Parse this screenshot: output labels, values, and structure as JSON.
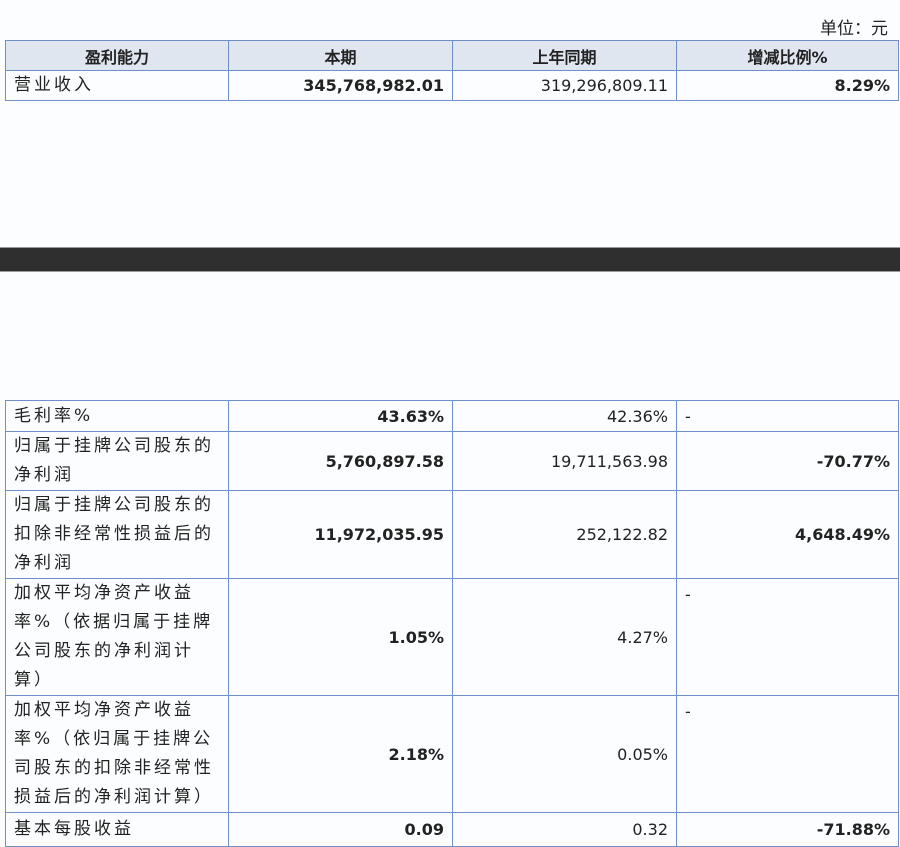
{
  "unit_label": "单位：元",
  "table1": {
    "headers": [
      "盈利能力",
      "本期",
      "上年同期",
      "增减比例%"
    ],
    "rows": [
      {
        "label": "营业收入",
        "current": "345,768,982.01",
        "previous": "319,296,809.11",
        "change": "8.29%"
      }
    ]
  },
  "table2": {
    "rows": [
      {
        "label": "毛利率%",
        "current": "43.63%",
        "previous": "42.36%",
        "change": "-"
      },
      {
        "label": "归属于挂牌公司股东的净利润",
        "current": "5,760,897.58",
        "previous": "19,711,563.98",
        "change": "-70.77%"
      },
      {
        "label": "归属于挂牌公司股东的扣除非经常性损益后的净利润",
        "current": "11,972,035.95",
        "previous": "252,122.82",
        "change": "4,648.49%"
      },
      {
        "label": "加权平均净资产收益率%（依据归属于挂牌公司股东的净利润计算）",
        "current": "1.05%",
        "previous": "4.27%",
        "change": "-"
      },
      {
        "label": "加权平均净资产收益率%（依归属于挂牌公司股东的扣除非经常性损益后的净利润计算）",
        "current": "2.18%",
        "previous": "0.05%",
        "change": "-"
      },
      {
        "label": "基本每股收益",
        "current": "0.09",
        "previous": "0.32",
        "change": "-71.88%"
      }
    ]
  }
}
